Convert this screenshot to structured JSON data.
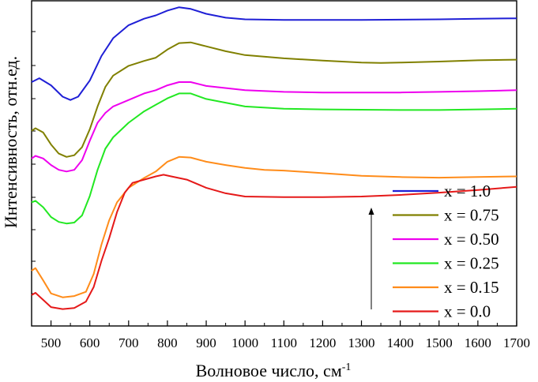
{
  "chart_data": {
    "type": "line",
    "xlabel": "Волновое число, см",
    "xlabel_sup": "-1",
    "ylabel": "Интенсивность, отн.ед.",
    "xlim": [
      450,
      1700
    ],
    "ylim": [
      0,
      100
    ],
    "x_ticks": [
      "500",
      "600",
      "700",
      "800",
      "900",
      "1000",
      "1100",
      "1200",
      "1300",
      "1400",
      "1500",
      "1600",
      "1700"
    ],
    "grid": false,
    "legend_position": "bottom-right",
    "arrow_annotation": "upward arrow beside legend",
    "series": [
      {
        "name": "x = 1.0",
        "color": "#1f1fd6",
        "points": [
          [
            450,
            75.0
          ],
          [
            470,
            76.2
          ],
          [
            500,
            74.0
          ],
          [
            530,
            70.5
          ],
          [
            550,
            69.5
          ],
          [
            570,
            70.5
          ],
          [
            600,
            75.5
          ],
          [
            630,
            83.0
          ],
          [
            660,
            88.5
          ],
          [
            700,
            92.5
          ],
          [
            740,
            94.5
          ],
          [
            770,
            95.5
          ],
          [
            800,
            97.0
          ],
          [
            830,
            98.0
          ],
          [
            860,
            97.5
          ],
          [
            900,
            96.0
          ],
          [
            950,
            94.8
          ],
          [
            1000,
            94.3
          ],
          [
            1100,
            94.1
          ],
          [
            1200,
            94.1
          ],
          [
            1300,
            94.1
          ],
          [
            1400,
            94.2
          ],
          [
            1500,
            94.3
          ],
          [
            1600,
            94.5
          ],
          [
            1700,
            94.6
          ]
        ]
      },
      {
        "name": "x = 0.75",
        "color": "#808000",
        "points": [
          [
            450,
            60.0
          ],
          [
            460,
            60.8
          ],
          [
            480,
            59.5
          ],
          [
            500,
            55.8
          ],
          [
            520,
            53.0
          ],
          [
            540,
            52.0
          ],
          [
            560,
            52.5
          ],
          [
            580,
            55.0
          ],
          [
            600,
            60.5
          ],
          [
            620,
            67.5
          ],
          [
            640,
            73.5
          ],
          [
            660,
            77.0
          ],
          [
            700,
            80.0
          ],
          [
            740,
            81.5
          ],
          [
            770,
            82.5
          ],
          [
            800,
            85.0
          ],
          [
            830,
            87.0
          ],
          [
            860,
            87.2
          ],
          [
            900,
            86.0
          ],
          [
            950,
            84.5
          ],
          [
            1000,
            83.3
          ],
          [
            1100,
            82.3
          ],
          [
            1200,
            81.6
          ],
          [
            1300,
            81.0
          ],
          [
            1350,
            80.9
          ],
          [
            1400,
            81.0
          ],
          [
            1500,
            81.3
          ],
          [
            1600,
            81.7
          ],
          [
            1700,
            81.9
          ]
        ]
      },
      {
        "name": "x = 0.50",
        "color": "#ee00ee",
        "points": [
          [
            450,
            51.5
          ],
          [
            460,
            52.3
          ],
          [
            480,
            51.5
          ],
          [
            500,
            49.5
          ],
          [
            520,
            48.0
          ],
          [
            540,
            47.5
          ],
          [
            560,
            48.0
          ],
          [
            580,
            51.0
          ],
          [
            600,
            57.0
          ],
          [
            620,
            62.5
          ],
          [
            640,
            65.5
          ],
          [
            660,
            67.5
          ],
          [
            700,
            69.5
          ],
          [
            740,
            71.5
          ],
          [
            770,
            72.5
          ],
          [
            800,
            74.0
          ],
          [
            830,
            75.0
          ],
          [
            860,
            75.0
          ],
          [
            900,
            73.8
          ],
          [
            1000,
            72.5
          ],
          [
            1100,
            72.0
          ],
          [
            1200,
            71.8
          ],
          [
            1300,
            71.8
          ],
          [
            1400,
            71.8
          ],
          [
            1500,
            72.0
          ],
          [
            1600,
            72.2
          ],
          [
            1700,
            72.5
          ]
        ]
      },
      {
        "name": "x = 0.25",
        "color": "#22e822",
        "points": [
          [
            450,
            38.0
          ],
          [
            460,
            38.5
          ],
          [
            480,
            36.5
          ],
          [
            500,
            33.5
          ],
          [
            520,
            32.0
          ],
          [
            540,
            31.5
          ],
          [
            560,
            31.8
          ],
          [
            580,
            34.0
          ],
          [
            600,
            40.0
          ],
          [
            620,
            48.0
          ],
          [
            640,
            54.5
          ],
          [
            660,
            58.0
          ],
          [
            700,
            62.5
          ],
          [
            740,
            66.0
          ],
          [
            770,
            68.0
          ],
          [
            800,
            70.0
          ],
          [
            830,
            71.5
          ],
          [
            860,
            71.5
          ],
          [
            900,
            69.8
          ],
          [
            1000,
            67.5
          ],
          [
            1100,
            66.8
          ],
          [
            1200,
            66.6
          ],
          [
            1300,
            66.5
          ],
          [
            1400,
            66.4
          ],
          [
            1500,
            66.4
          ],
          [
            1600,
            66.6
          ],
          [
            1700,
            66.8
          ]
        ]
      },
      {
        "name": "x = 0.15",
        "color": "#ff8c1a",
        "points": [
          [
            450,
            17.0
          ],
          [
            460,
            17.8
          ],
          [
            480,
            14.0
          ],
          [
            500,
            10.0
          ],
          [
            530,
            8.8
          ],
          [
            560,
            9.2
          ],
          [
            590,
            10.5
          ],
          [
            610,
            16.0
          ],
          [
            630,
            25.0
          ],
          [
            650,
            32.5
          ],
          [
            670,
            38.0
          ],
          [
            700,
            42.5
          ],
          [
            740,
            45.5
          ],
          [
            770,
            47.5
          ],
          [
            800,
            50.5
          ],
          [
            830,
            52.0
          ],
          [
            860,
            51.8
          ],
          [
            900,
            50.5
          ],
          [
            950,
            49.5
          ],
          [
            1000,
            48.6
          ],
          [
            1050,
            48.0
          ],
          [
            1100,
            47.8
          ],
          [
            1200,
            47.0
          ],
          [
            1300,
            46.2
          ],
          [
            1400,
            45.8
          ],
          [
            1500,
            45.6
          ],
          [
            1600,
            45.8
          ],
          [
            1700,
            46.0
          ]
        ]
      },
      {
        "name": "x = 0.0",
        "color": "#e51919",
        "points": [
          [
            450,
            9.5
          ],
          [
            460,
            10.2
          ],
          [
            480,
            8.0
          ],
          [
            500,
            5.8
          ],
          [
            530,
            5.2
          ],
          [
            560,
            5.5
          ],
          [
            590,
            7.5
          ],
          [
            610,
            12.0
          ],
          [
            630,
            20.0
          ],
          [
            650,
            27.0
          ],
          [
            670,
            35.0
          ],
          [
            690,
            41.0
          ],
          [
            710,
            44.0
          ],
          [
            740,
            45.0
          ],
          [
            770,
            46.0
          ],
          [
            790,
            46.5
          ],
          [
            810,
            46.0
          ],
          [
            850,
            45.0
          ],
          [
            900,
            42.5
          ],
          [
            950,
            40.8
          ],
          [
            1000,
            39.8
          ],
          [
            1100,
            39.6
          ],
          [
            1200,
            39.6
          ],
          [
            1300,
            39.8
          ],
          [
            1400,
            40.3
          ],
          [
            1500,
            41.0
          ],
          [
            1600,
            41.8
          ],
          [
            1700,
            42.8
          ]
        ]
      }
    ]
  }
}
